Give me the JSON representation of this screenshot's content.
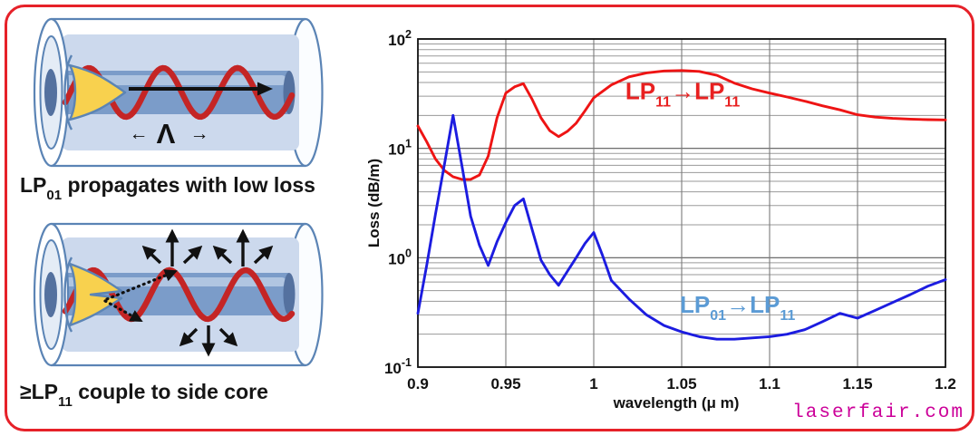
{
  "frame": {
    "border_color": "#e62129",
    "background": "#ffffff"
  },
  "left_panel": {
    "diagram1": {
      "name": "fiber with LP01 mode propagating",
      "lambda_left_arrow": "←",
      "lambda_symbol": "Λ",
      "lambda_right_arrow": "→",
      "caption": {
        "pre": "LP",
        "sub": "01",
        "rest": " propagates with low loss"
      }
    },
    "diagram2": {
      "name": "fiber with higher-order modes scattering to side core",
      "caption": {
        "pre": "≥LP",
        "sub": "11",
        "rest": " couple to side core"
      }
    }
  },
  "diagram_colors": {
    "outline": "#5b84b5",
    "cladding": "#ccd9ed",
    "core": "#7b9cc9",
    "core_highlight": "#b0c5e1",
    "core_dark": "#54719f",
    "inner_opening": "#e4ecf6",
    "wave": "#c42525",
    "pulse": "#f8d14e",
    "black": "#111111"
  },
  "chart_data": {
    "type": "line",
    "title": "",
    "xlabel": "wavelength (μ m)",
    "ylabel": "Loss (dB/m)",
    "x_range": [
      0.9,
      1.2
    ],
    "y_log_range": [
      -1,
      2
    ],
    "grid": true,
    "legend_position": "inline-annotations",
    "x_ticks": [
      {
        "v": 0.9,
        "label": "0.9"
      },
      {
        "v": 0.95,
        "label": "0.95"
      },
      {
        "v": 1.0,
        "label": "1"
      },
      {
        "v": 1.05,
        "label": "1.05"
      },
      {
        "v": 1.1,
        "label": "1.1"
      },
      {
        "v": 1.15,
        "label": "1.15"
      },
      {
        "v": 1.2,
        "label": "1.2"
      }
    ],
    "y_ticks": [
      {
        "base": "10",
        "exp": "2"
      },
      {
        "base": "10",
        "exp": "1"
      },
      {
        "base": "10",
        "exp": "0"
      },
      {
        "base": "10",
        "exp": "-1"
      }
    ],
    "series": [
      {
        "name": "LP11-to-LP11-loss",
        "color": "#ee1414",
        "label_color": "#e82020",
        "label_parts": [
          {
            "t": "LP",
            "s": "11"
          },
          {
            "t": "→"
          },
          {
            "t": "LP",
            "s": "11"
          }
        ],
        "label_anchor": {
          "x": 1.018,
          "y": 28
        },
        "points": [
          [
            0.9,
            16
          ],
          [
            0.905,
            11.5
          ],
          [
            0.91,
            8.0
          ],
          [
            0.915,
            6.3
          ],
          [
            0.92,
            5.5
          ],
          [
            0.925,
            5.2
          ],
          [
            0.93,
            5.2
          ],
          [
            0.935,
            5.7
          ],
          [
            0.94,
            8.5
          ],
          [
            0.945,
            19
          ],
          [
            0.95,
            32
          ],
          [
            0.955,
            36.5
          ],
          [
            0.96,
            39
          ],
          [
            0.965,
            28
          ],
          [
            0.97,
            19
          ],
          [
            0.975,
            14.5
          ],
          [
            0.98,
            12.8
          ],
          [
            0.985,
            14.3
          ],
          [
            0.99,
            17
          ],
          [
            0.995,
            22
          ],
          [
            1.0,
            29
          ],
          [
            1.01,
            38
          ],
          [
            1.02,
            45
          ],
          [
            1.03,
            49
          ],
          [
            1.04,
            51
          ],
          [
            1.05,
            51.5
          ],
          [
            1.06,
            50.5
          ],
          [
            1.07,
            46.5
          ],
          [
            1.08,
            39.5
          ],
          [
            1.09,
            35
          ],
          [
            1.1,
            32
          ],
          [
            1.11,
            29.5
          ],
          [
            1.12,
            27
          ],
          [
            1.13,
            24.5
          ],
          [
            1.14,
            22.5
          ],
          [
            1.15,
            20.3
          ],
          [
            1.16,
            19.3
          ],
          [
            1.17,
            18.8
          ],
          [
            1.18,
            18.5
          ],
          [
            1.19,
            18.3
          ],
          [
            1.2,
            18.2
          ]
        ]
      },
      {
        "name": "LP01-to-LP11-loss",
        "color": "#1c1ce0",
        "label_color": "#5b9bd5",
        "label_parts": [
          {
            "t": "LP",
            "s": "01"
          },
          {
            "t": "→"
          },
          {
            "t": "LP",
            "s": "11"
          }
        ],
        "label_anchor": {
          "x": 1.049,
          "y": 0.315
        },
        "points": [
          [
            0.9,
            0.31
          ],
          [
            0.905,
            0.85
          ],
          [
            0.91,
            2.5
          ],
          [
            0.915,
            7.0
          ],
          [
            0.92,
            20
          ],
          [
            0.925,
            7.0
          ],
          [
            0.93,
            2.4
          ],
          [
            0.935,
            1.3
          ],
          [
            0.94,
            0.85
          ],
          [
            0.945,
            1.4
          ],
          [
            0.95,
            2.1
          ],
          [
            0.955,
            3.0
          ],
          [
            0.96,
            3.45
          ],
          [
            0.965,
            1.8
          ],
          [
            0.97,
            0.95
          ],
          [
            0.975,
            0.7
          ],
          [
            0.98,
            0.56
          ],
          [
            0.985,
            0.75
          ],
          [
            0.99,
            1.0
          ],
          [
            0.995,
            1.35
          ],
          [
            1.0,
            1.7
          ],
          [
            1.005,
            1.05
          ],
          [
            1.01,
            0.62
          ],
          [
            1.02,
            0.42
          ],
          [
            1.03,
            0.3
          ],
          [
            1.04,
            0.24
          ],
          [
            1.05,
            0.21
          ],
          [
            1.06,
            0.19
          ],
          [
            1.07,
            0.18
          ],
          [
            1.08,
            0.18
          ],
          [
            1.09,
            0.185
          ],
          [
            1.1,
            0.19
          ],
          [
            1.11,
            0.2
          ],
          [
            1.12,
            0.22
          ],
          [
            1.13,
            0.26
          ],
          [
            1.14,
            0.31
          ],
          [
            1.15,
            0.28
          ],
          [
            1.16,
            0.33
          ],
          [
            1.17,
            0.39
          ],
          [
            1.18,
            0.46
          ],
          [
            1.19,
            0.55
          ],
          [
            1.2,
            0.63
          ]
        ]
      }
    ]
  },
  "watermark": {
    "text": "laserfair.com",
    "color": "#cc0099"
  }
}
